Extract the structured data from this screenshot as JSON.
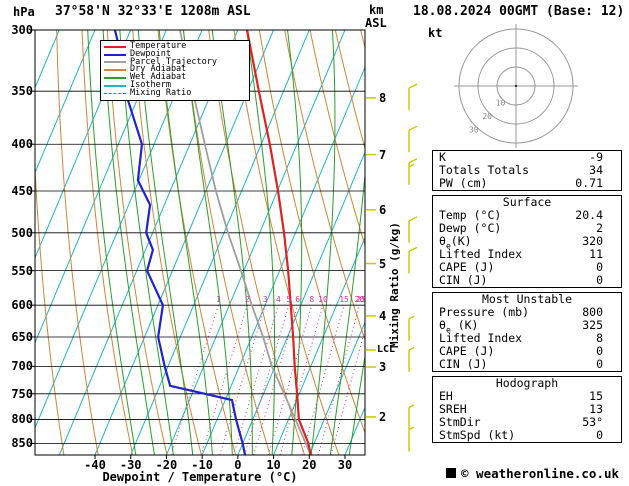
{
  "header": {
    "pressure_unit": "hPa",
    "station": "37°58'N 32°33'E 1208m ASL",
    "km": "km",
    "asl": "ASL",
    "datetime": "18.08.2024 00GMT (Base: 12)"
  },
  "legend": {
    "items": [
      {
        "label": "Temperature",
        "color": "#dd2222",
        "dash": false
      },
      {
        "label": "Dewpoint",
        "color": "#2222cc",
        "dash": false
      },
      {
        "label": "Parcel Trajectory",
        "color": "#9f9f9f",
        "dash": false
      },
      {
        "label": "Dry Adiabat",
        "color": "#cd853f",
        "dash": false
      },
      {
        "label": "Wet Adiabat",
        "color": "#2e9b2e",
        "dash": false
      },
      {
        "label": "Isotherm",
        "color": "#28b3c3",
        "dash": false
      },
      {
        "label": "Mixing Ratio",
        "color": "#cc3399",
        "dash": true
      }
    ]
  },
  "colors": {
    "temperature": "#dd2222",
    "dewpoint": "#2222cc",
    "parcel": "#9f9f9f",
    "dry_adiabat": "#cd853f",
    "wet_adiabat": "#2e9b2e",
    "isotherm": "#28b3c3",
    "mixing_ratio": "#cc3399",
    "wind_barb": "#c9c900",
    "grid": "#000000"
  },
  "side": {
    "km_values": [
      8,
      7,
      6,
      5,
      4,
      3,
      2
    ],
    "lcl": "LCL",
    "mixing_ratio_label": "Mixing Ratio (g/kg)"
  },
  "hodograph": {
    "unit": "kt",
    "rings": [
      10,
      20,
      30
    ]
  },
  "chart_data": {
    "type": "line",
    "subtype": "skew-t-log-p-sounding",
    "title": "37°58'N 32°33'E 1208m ASL",
    "datetime": "18.08.2024 00GMT (Base: 12)",
    "xlabel": "Dewpoint / Temperature (°C)",
    "ylabel": "hPa",
    "pressure_range_hpa": [
      300,
      875
    ],
    "temp_axis_range_c": [
      -40,
      30
    ],
    "pressure_ticks": [
      300,
      350,
      400,
      450,
      500,
      550,
      600,
      650,
      700,
      750,
      800,
      850
    ],
    "temp_ticks": [
      -40,
      -30,
      -20,
      -10,
      0,
      10,
      20,
      30
    ],
    "km_ticks": [
      2,
      3,
      4,
      5,
      6,
      7,
      8
    ],
    "isotherm_step": 10,
    "mixing_ratio_values": [
      1,
      2,
      3,
      4,
      5,
      6,
      8,
      10,
      15,
      20,
      25
    ],
    "series": [
      {
        "name": "Parcel Trajectory",
        "color": "#9f9f9f",
        "points": [
          [
            875,
            20.4
          ],
          [
            822,
            14.5
          ],
          [
            762,
            7.3
          ],
          [
            700,
            -0.9
          ],
          [
            650,
            -6.8
          ],
          [
            600,
            -13.7
          ],
          [
            550,
            -20.8
          ],
          [
            500,
            -28.9
          ],
          [
            450,
            -37.2
          ],
          [
            400,
            -45.8
          ],
          [
            350,
            -55.4
          ],
          [
            300,
            -66.2
          ]
        ]
      },
      {
        "name": "Temperature",
        "color": "#dd2222",
        "points": [
          [
            875,
            20.4
          ],
          [
            850,
            18.4
          ],
          [
            800,
            12.9
          ],
          [
            750,
            9.4
          ],
          [
            700,
            5.5
          ],
          [
            650,
            1.6
          ],
          [
            600,
            -2.8
          ],
          [
            550,
            -7.6
          ],
          [
            500,
            -13.2
          ],
          [
            450,
            -19.8
          ],
          [
            400,
            -27.6
          ],
          [
            350,
            -36.9
          ],
          [
            300,
            -47.4
          ]
        ]
      },
      {
        "name": "Dewpoint",
        "color": "#2222cc",
        "points": [
          [
            875,
            2
          ],
          [
            850,
            0
          ],
          [
            800,
            -4.7
          ],
          [
            762,
            -8.1
          ],
          [
            735,
            -27.1
          ],
          [
            700,
            -30.9
          ],
          [
            650,
            -36.2
          ],
          [
            600,
            -38.6
          ],
          [
            550,
            -47.1
          ],
          [
            522,
            -47.9
          ],
          [
            500,
            -51.8
          ],
          [
            466,
            -54
          ],
          [
            438,
            -60.3
          ],
          [
            400,
            -63.4
          ],
          [
            358,
            -72.5
          ],
          [
            323,
            -78.9
          ],
          [
            300,
            -84.4
          ]
        ]
      }
    ],
    "wind_barbs": [
      {
        "p": 358,
        "kt": 10
      },
      {
        "p": 398,
        "kt": 10
      },
      {
        "p": 432,
        "kt": 15
      },
      {
        "p": 500,
        "kt": 10
      },
      {
        "p": 540,
        "kt": 10
      },
      {
        "p": 640,
        "kt": 5
      },
      {
        "p": 692,
        "kt": 5
      },
      {
        "p": 800,
        "kt": 5
      },
      {
        "p": 846,
        "kt": 5
      }
    ]
  },
  "panel": {
    "tables": [
      {
        "header": null,
        "rows": [
          [
            "K",
            "-9"
          ],
          [
            "Totals Totals",
            "34"
          ],
          [
            "PW (cm)",
            "0.71"
          ]
        ]
      },
      {
        "header": "Surface",
        "rows": [
          [
            "Temp (°C)",
            "20.4"
          ],
          [
            "Dewp (°C)",
            "2"
          ],
          [
            "θe(K)",
            "320"
          ],
          [
            "Lifted Index",
            "11"
          ],
          [
            "CAPE (J)",
            "0"
          ],
          [
            "CIN (J)",
            "0"
          ]
        ]
      },
      {
        "header": "Most Unstable",
        "rows": [
          [
            "Pressure (mb)",
            "800"
          ],
          [
            "θe (K)",
            "325"
          ],
          [
            "Lifted Index",
            "8"
          ],
          [
            "CAPE (J)",
            "0"
          ],
          [
            "CIN (J)",
            "0"
          ]
        ]
      },
      {
        "header": "Hodograph",
        "rows": [
          [
            "EH",
            "15"
          ],
          [
            "SREH",
            "13"
          ],
          [
            "StmDir",
            "53°"
          ],
          [
            "StmSpd (kt)",
            "0"
          ]
        ]
      }
    ]
  },
  "footer": {
    "xaxis_label": "Dewpoint / Temperature (°C)",
    "copyright": "© weatheronline.co.uk"
  }
}
